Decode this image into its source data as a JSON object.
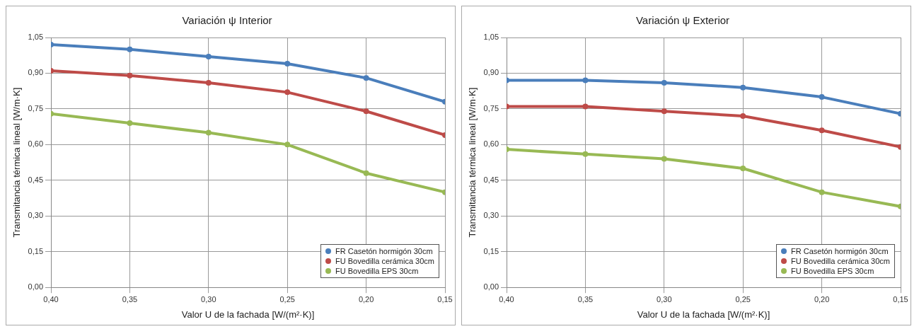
{
  "chart_data": [
    {
      "type": "line",
      "title": "Variación ψ Interior",
      "xlabel": "Valor U de la fachada [W/(m²·K)]",
      "ylabel": "Transmitancia térmica lineal [W/m·K]",
      "x": [
        0.4,
        0.35,
        0.3,
        0.25,
        0.2,
        0.15
      ],
      "series": [
        {
          "name": "FR Casetón hormigón 30cm",
          "color": "#4a7ebb",
          "values": [
            1.02,
            1.0,
            0.97,
            0.94,
            0.88,
            0.78
          ]
        },
        {
          "name": "FU Bovedilla cerámica 30cm",
          "color": "#be4b48",
          "values": [
            0.91,
            0.89,
            0.86,
            0.82,
            0.74,
            0.64
          ]
        },
        {
          "name": "FU Bovedilla EPS 30cm",
          "color": "#98b954",
          "values": [
            0.73,
            0.69,
            0.65,
            0.6,
            0.48,
            0.4
          ]
        }
      ],
      "xlim": [
        0.4,
        0.15
      ],
      "xticks": [
        {
          "value": 0.4,
          "label": "0,40"
        },
        {
          "value": 0.35,
          "label": "0,35"
        },
        {
          "value": 0.3,
          "label": "0,30"
        },
        {
          "value": 0.25,
          "label": "0,25"
        },
        {
          "value": 0.2,
          "label": "0,20"
        },
        {
          "value": 0.15,
          "label": "0,15"
        }
      ],
      "ylim": [
        0,
        1.05
      ],
      "yticks": [
        {
          "value": 0,
          "label": "0,00"
        },
        {
          "value": 0.15,
          "label": "0,15"
        },
        {
          "value": 0.3,
          "label": "0,30"
        },
        {
          "value": 0.45,
          "label": "0,45"
        },
        {
          "value": 0.6,
          "label": "0,60"
        },
        {
          "value": 0.75,
          "label": "0,75"
        },
        {
          "value": 0.9,
          "label": "0,90"
        },
        {
          "value": 1.05,
          "label": "1,05"
        }
      ],
      "grid": true,
      "legend": "bottom right",
      "marker": "circle",
      "line_style": "solid"
    },
    {
      "type": "line",
      "title": "Variación ψ Exterior",
      "xlabel": "Valor U de la fachada [W/(m²·K)]",
      "ylabel": "Transmitancia térmica lineal [W/m·K]",
      "x": [
        0.4,
        0.35,
        0.3,
        0.25,
        0.2,
        0.15
      ],
      "series": [
        {
          "name": "FR Casetón hormigón 30cm",
          "color": "#4a7ebb",
          "values": [
            0.87,
            0.87,
            0.86,
            0.84,
            0.8,
            0.73
          ]
        },
        {
          "name": "FU Bovedilla cerámica 30cm",
          "color": "#be4b48",
          "values": [
            0.76,
            0.76,
            0.74,
            0.72,
            0.66,
            0.59
          ]
        },
        {
          "name": "FU Bovedilla EPS 30cm",
          "color": "#98b954",
          "values": [
            0.58,
            0.56,
            0.54,
            0.5,
            0.4,
            0.34
          ]
        }
      ],
      "xlim": [
        0.4,
        0.15
      ],
      "xticks": [
        {
          "value": 0.4,
          "label": "0,40"
        },
        {
          "value": 0.35,
          "label": "0,35"
        },
        {
          "value": 0.3,
          "label": "0,30"
        },
        {
          "value": 0.25,
          "label": "0,25"
        },
        {
          "value": 0.2,
          "label": "0,20"
        },
        {
          "value": 0.15,
          "label": "0,15"
        }
      ],
      "ylim": [
        0,
        1.05
      ],
      "yticks": [
        {
          "value": 0,
          "label": "0,00"
        },
        {
          "value": 0.15,
          "label": "0,15"
        },
        {
          "value": 0.3,
          "label": "0,30"
        },
        {
          "value": 0.45,
          "label": "0,45"
        },
        {
          "value": 0.6,
          "label": "0,60"
        },
        {
          "value": 0.75,
          "label": "0,75"
        },
        {
          "value": 0.9,
          "label": "0,90"
        },
        {
          "value": 1.05,
          "label": "1,05"
        }
      ],
      "grid": true,
      "legend": "bottom right",
      "marker": "circle",
      "line_style": "solid"
    }
  ]
}
